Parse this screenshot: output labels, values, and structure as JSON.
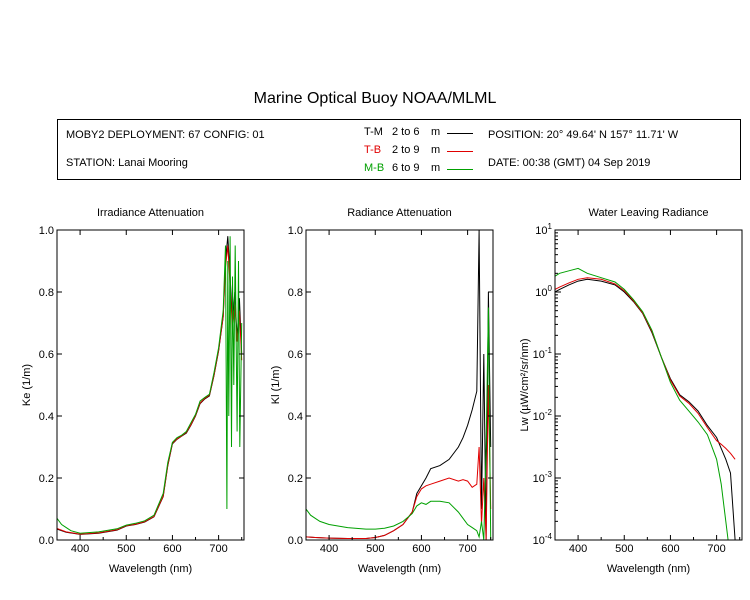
{
  "title": "Marine Optical Buoy NOAA/MLML",
  "info": {
    "deployment": "MOBY2 DEPLOYMENT: 67 CONFIG: 01",
    "station": "STATION: Lanai Mooring",
    "position": "POSITION: 20° 49.64' N   157° 11.71' W",
    "date": "DATE: 00:38 (GMT) 04 Sep 2019"
  },
  "legend": [
    {
      "code": "T-M",
      "range": "2 to 6",
      "unit": "m",
      "color": "#000000"
    },
    {
      "code": "T-B",
      "range": "2 to 9",
      "unit": "m",
      "color": "#e00000"
    },
    {
      "code": "M-B",
      "range": "6 to 9",
      "unit": "m",
      "color": "#00a000"
    }
  ],
  "chart_data": [
    {
      "type": "line",
      "title": "Irradiance Attenuation",
      "xlabel": "Wavelength (nm)",
      "ylabel": "Ke  (1/m)",
      "xlim": [
        350,
        755
      ],
      "ylim": [
        0,
        1
      ],
      "xticks": [
        400,
        500,
        600,
        700
      ],
      "yticks": [
        "0.0",
        "0.2",
        "0.4",
        "0.6",
        "0.8",
        "1.0"
      ],
      "yscale": "linear",
      "series": [
        {
          "name": "T-M",
          "color": "#000000",
          "x": [
            350,
            370,
            400,
            440,
            480,
            500,
            520,
            540,
            560,
            580,
            590,
            600,
            610,
            620,
            630,
            640,
            650,
            660,
            670,
            680,
            690,
            700,
            710,
            715,
            720,
            725,
            730,
            735,
            740,
            745,
            750
          ],
          "y": [
            0.035,
            0.025,
            0.018,
            0.022,
            0.032,
            0.045,
            0.05,
            0.058,
            0.075,
            0.14,
            0.24,
            0.31,
            0.325,
            0.335,
            0.345,
            0.37,
            0.4,
            0.44,
            0.455,
            0.465,
            0.53,
            0.61,
            0.72,
            0.9,
            0.98,
            0.85,
            0.7,
            0.8,
            0.65,
            0.78,
            0.6
          ]
        },
        {
          "name": "T-B",
          "color": "#e00000",
          "x": [
            350,
            370,
            400,
            440,
            480,
            500,
            520,
            540,
            560,
            580,
            590,
            600,
            610,
            620,
            630,
            640,
            650,
            660,
            670,
            680,
            690,
            700,
            710,
            715,
            720,
            725,
            730,
            735,
            740,
            745,
            750
          ],
          "y": [
            0.037,
            0.026,
            0.019,
            0.023,
            0.033,
            0.046,
            0.051,
            0.059,
            0.076,
            0.142,
            0.242,
            0.312,
            0.326,
            0.336,
            0.347,
            0.372,
            0.402,
            0.442,
            0.457,
            0.467,
            0.532,
            0.612,
            0.722,
            0.88,
            0.95,
            0.82,
            0.68,
            0.76,
            0.64,
            0.74,
            0.58
          ]
        },
        {
          "name": "M-B",
          "color": "#00a000",
          "x": [
            350,
            360,
            370,
            380,
            400,
            440,
            480,
            500,
            520,
            540,
            560,
            580,
            590,
            600,
            610,
            620,
            630,
            640,
            650,
            660,
            670,
            680,
            690,
            700,
            710,
            715,
            718,
            720,
            722,
            725,
            728,
            730,
            733,
            736,
            740,
            743,
            746,
            750
          ],
          "y": [
            0.07,
            0.05,
            0.04,
            0.03,
            0.022,
            0.026,
            0.036,
            0.048,
            0.054,
            0.062,
            0.08,
            0.15,
            0.25,
            0.315,
            0.33,
            0.338,
            0.35,
            0.378,
            0.405,
            0.448,
            0.46,
            0.47,
            0.54,
            0.62,
            0.74,
            0.95,
            0.1,
            0.9,
            0.4,
            0.98,
            0.3,
            0.85,
            0.5,
            0.95,
            0.35,
            0.9,
            0.3,
            0.7
          ]
        }
      ]
    },
    {
      "type": "line",
      "title": "Radiance Attenuation",
      "xlabel": "Wavelength (nm)",
      "ylabel": "Kl  (1/m)",
      "xlim": [
        350,
        755
      ],
      "ylim": [
        0,
        1
      ],
      "xticks": [
        400,
        500,
        600,
        700
      ],
      "yticks": [
        "0.0",
        "0.2",
        "0.4",
        "0.6",
        "0.8",
        "1.0"
      ],
      "yscale": "linear",
      "series": [
        {
          "name": "T-M",
          "color": "#000000",
          "x": [
            350,
            370,
            400,
            440,
            480,
            500,
            520,
            540,
            560,
            580,
            590,
            600,
            610,
            620,
            640,
            660,
            680,
            690,
            700,
            710,
            720,
            725,
            730,
            735,
            740,
            745,
            750
          ],
          "y": [
            0.01,
            0.008,
            0.006,
            0.005,
            0.005,
            0.008,
            0.015,
            0.03,
            0.05,
            0.09,
            0.15,
            0.175,
            0.2,
            0.23,
            0.24,
            0.26,
            0.3,
            0.33,
            0.37,
            0.42,
            0.48,
            1.0,
            0.1,
            0.6,
            0.0,
            0.8,
            0.3
          ]
        },
        {
          "name": "T-B",
          "color": "#e00000",
          "x": [
            350,
            370,
            400,
            440,
            480,
            500,
            520,
            540,
            560,
            580,
            590,
            600,
            610,
            620,
            640,
            660,
            680,
            690,
            700,
            710,
            720,
            725,
            730,
            735,
            740,
            745,
            750
          ],
          "y": [
            0.01,
            0.008,
            0.006,
            0.005,
            0.005,
            0.008,
            0.015,
            0.03,
            0.05,
            0.09,
            0.14,
            0.165,
            0.175,
            0.18,
            0.19,
            0.2,
            0.19,
            0.195,
            0.19,
            0.17,
            0.18,
            0.3,
            0.05,
            0.2,
            0.0,
            0.5,
            0.1
          ]
        },
        {
          "name": "M-B",
          "color": "#00a000",
          "x": [
            350,
            360,
            370,
            380,
            400,
            440,
            480,
            500,
            520,
            540,
            560,
            580,
            590,
            600,
            610,
            620,
            640,
            660,
            680,
            690,
            700,
            710,
            720,
            725,
            730,
            735,
            740,
            745,
            750
          ],
          "y": [
            0.1,
            0.08,
            0.07,
            0.06,
            0.05,
            0.04,
            0.035,
            0.035,
            0.038,
            0.045,
            0.06,
            0.085,
            0.11,
            0.12,
            0.115,
            0.125,
            0.125,
            0.12,
            0.09,
            0.07,
            0.05,
            0.04,
            0.03,
            0.01,
            0.06,
            0.0,
            0.3,
            0.75,
            0.0
          ]
        }
      ]
    },
    {
      "type": "line",
      "title": "Water Leaving Radiance",
      "xlabel": "Wavelength (nm)",
      "ylabel": "Lw  (µW/cm²/sr/nm)",
      "xlim": [
        350,
        755
      ],
      "ylim": [
        0.0001,
        10
      ],
      "yscale": "log",
      "xticks": [
        400,
        500,
        600,
        700
      ],
      "yticks": [
        "10^-4",
        "10^-3",
        "10^-2",
        "10^-1",
        "10^0",
        "10^1"
      ],
      "series": [
        {
          "name": "T-M",
          "color": "#000000",
          "x": [
            350,
            360,
            380,
            400,
            420,
            450,
            480,
            500,
            520,
            540,
            560,
            580,
            600,
            620,
            640,
            660,
            680,
            700,
            710,
            720,
            730,
            740
          ],
          "y": [
            1.0,
            1.1,
            1.3,
            1.5,
            1.6,
            1.5,
            1.3,
            1.0,
            0.7,
            0.45,
            0.22,
            0.09,
            0.04,
            0.022,
            0.017,
            0.012,
            0.007,
            0.0045,
            0.003,
            0.002,
            0.0012,
            0.0001
          ]
        },
        {
          "name": "T-B",
          "color": "#e00000",
          "x": [
            350,
            360,
            380,
            400,
            420,
            450,
            480,
            500,
            520,
            540,
            560,
            580,
            600,
            620,
            640,
            660,
            680,
            700,
            710,
            720,
            730,
            740
          ],
          "y": [
            1.1,
            1.2,
            1.4,
            1.6,
            1.7,
            1.6,
            1.35,
            1.05,
            0.72,
            0.46,
            0.23,
            0.09,
            0.038,
            0.021,
            0.016,
            0.011,
            0.0065,
            0.004,
            0.0035,
            0.003,
            0.0025,
            0.002
          ]
        },
        {
          "name": "M-B",
          "color": "#00a000",
          "x": [
            350,
            360,
            380,
            400,
            420,
            450,
            480,
            500,
            520,
            540,
            560,
            580,
            600,
            620,
            640,
            660,
            680,
            700,
            710,
            720,
            725
          ],
          "y": [
            1.8,
            2.0,
            2.2,
            2.4,
            2.0,
            1.7,
            1.45,
            1.1,
            0.75,
            0.48,
            0.24,
            0.09,
            0.035,
            0.018,
            0.012,
            0.008,
            0.005,
            0.002,
            0.0008,
            0.0002,
            0.0001
          ]
        }
      ]
    }
  ]
}
